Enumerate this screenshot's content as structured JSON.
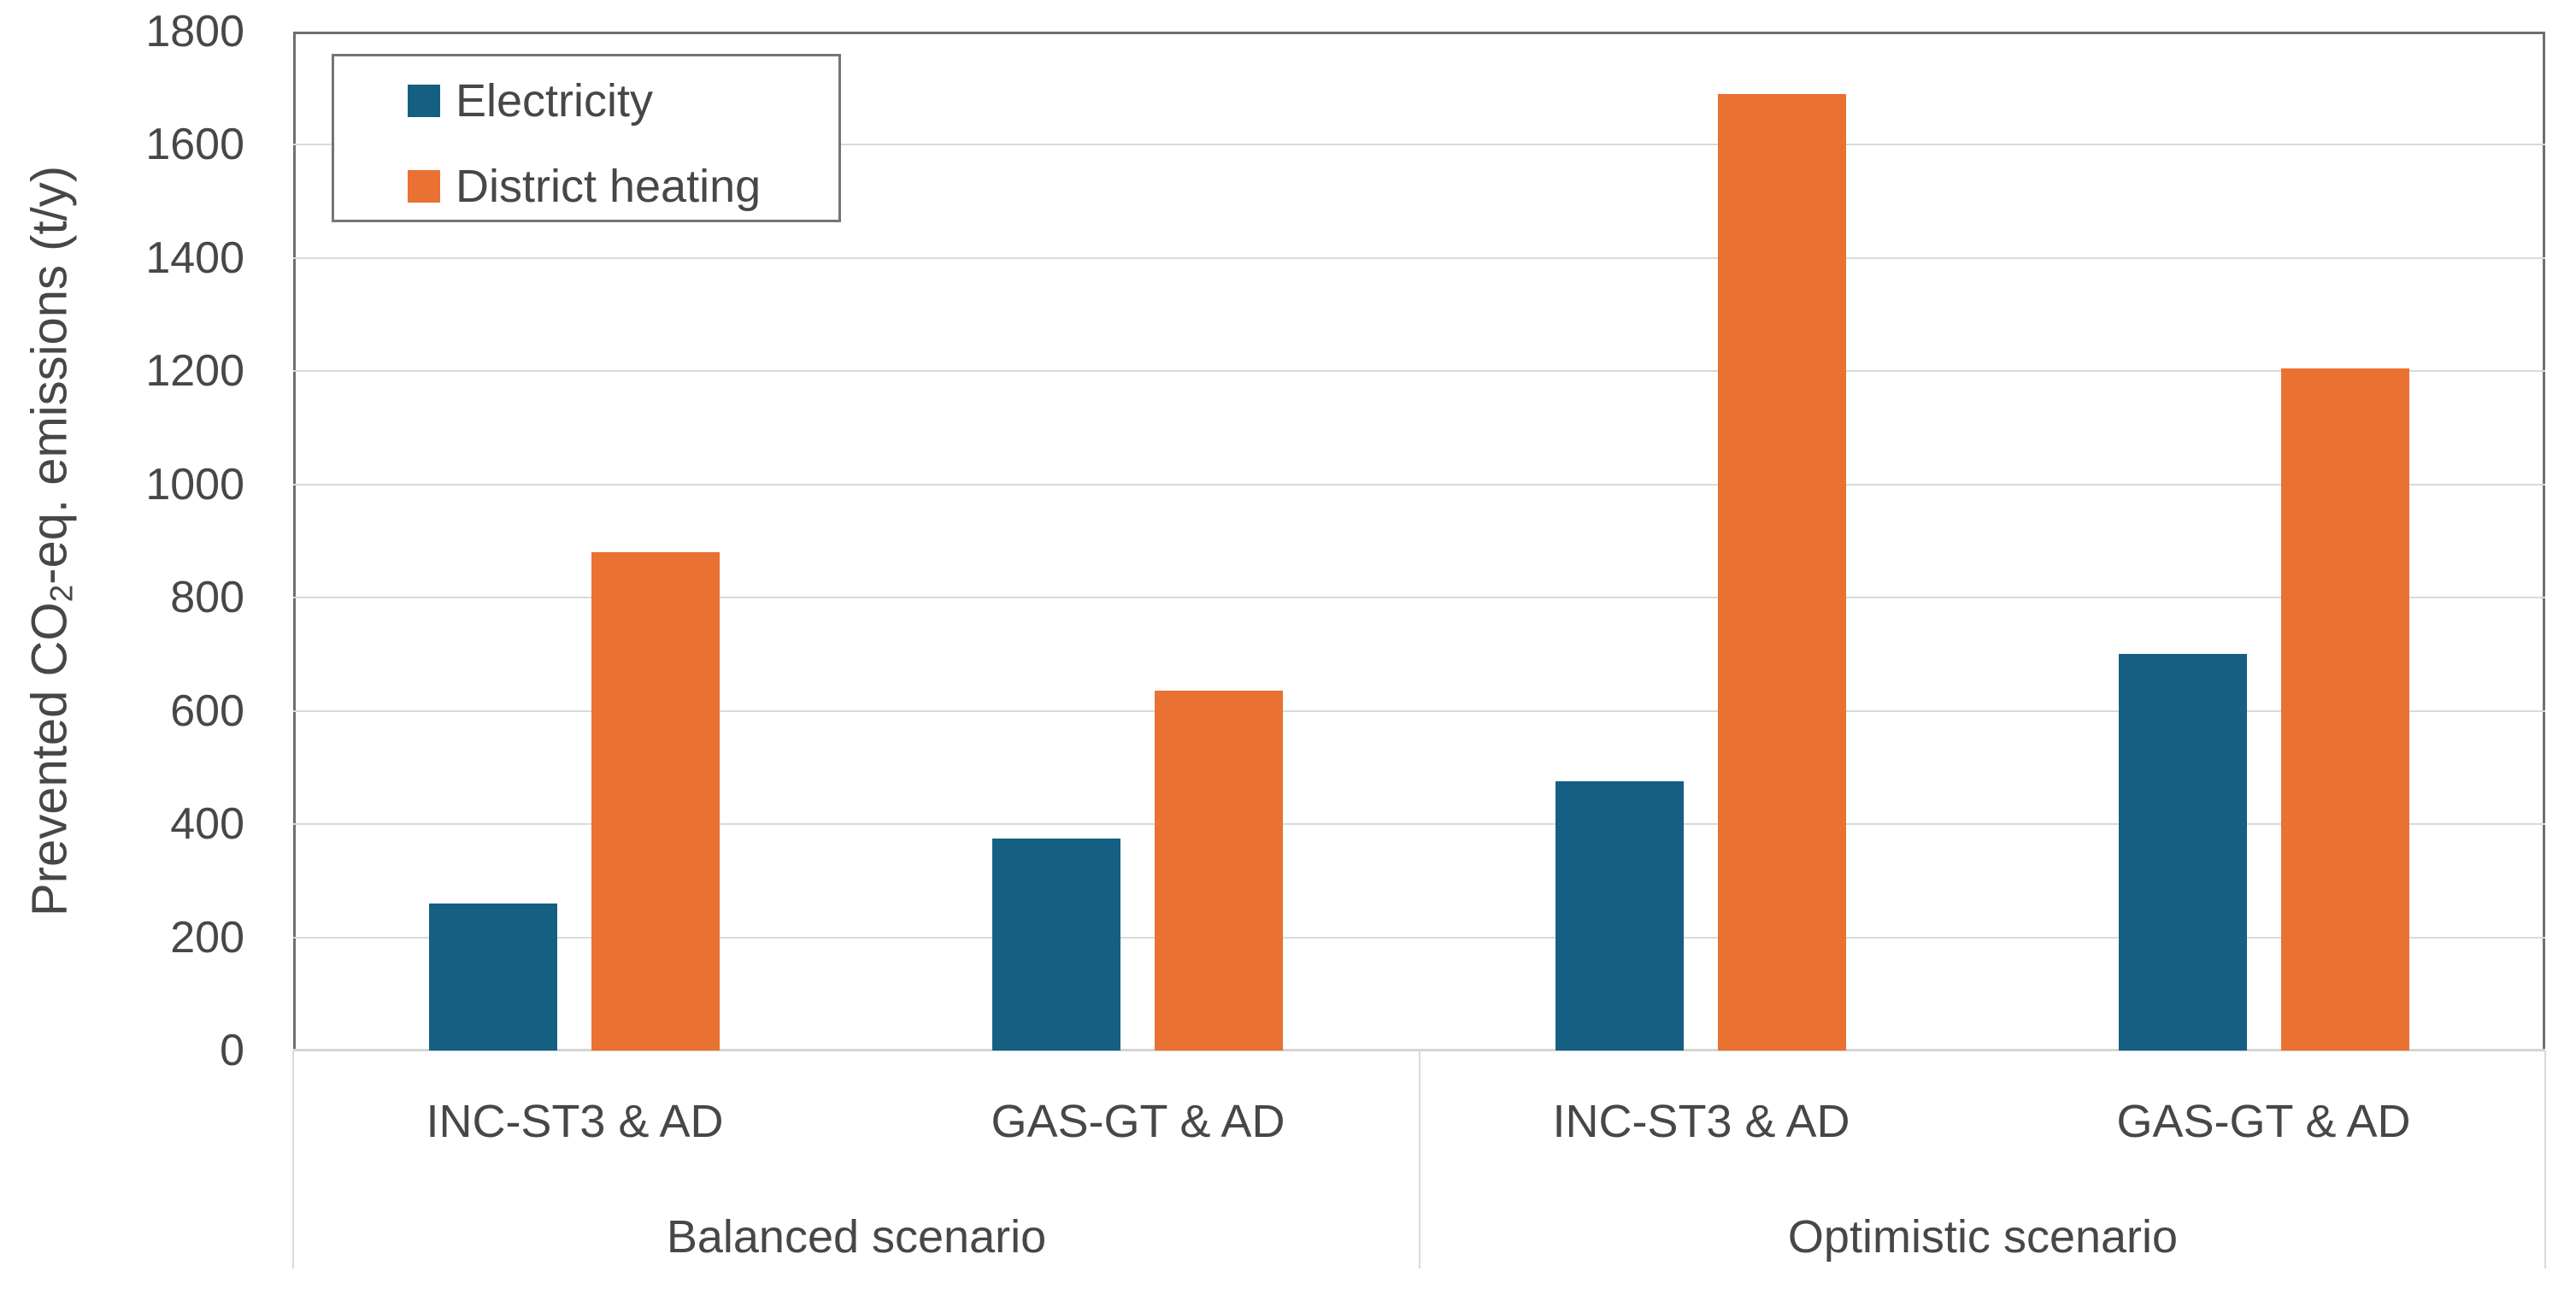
{
  "figure": {
    "kind": "grouped-bar-chart",
    "background_color": "#ffffff",
    "text_color": "#474747"
  },
  "chart_data": {
    "type": "bar",
    "title": "",
    "ylabel_parts": {
      "pre": "Prevented CO",
      "sub": "2",
      "post": "-eq. emissions (t/y)"
    },
    "ylabel_plain": "Prevented CO2-eq. emissions (t/y)",
    "xlabel": "",
    "ylim": [
      0,
      1800
    ],
    "ytick_step": 200,
    "yticks": [
      0,
      200,
      400,
      600,
      800,
      1000,
      1200,
      1400,
      1600,
      1800
    ],
    "grid": true,
    "legend_position": "top-left",
    "categories": [
      "INC-ST3 & AD",
      "GAS-GT & AD",
      "INC-ST3 & AD",
      "GAS-GT & AD"
    ],
    "category_group_index": [
      0,
      0,
      1,
      1
    ],
    "group_labels": [
      "Balanced scenario",
      "Optimistic scenario"
    ],
    "series": [
      {
        "name": "Electricity",
        "color": "#156082",
        "values": [
          260,
          375,
          475,
          700
        ]
      },
      {
        "name": "District heating",
        "color": "#E97132",
        "values": [
          880,
          635,
          1690,
          1205
        ]
      }
    ]
  }
}
